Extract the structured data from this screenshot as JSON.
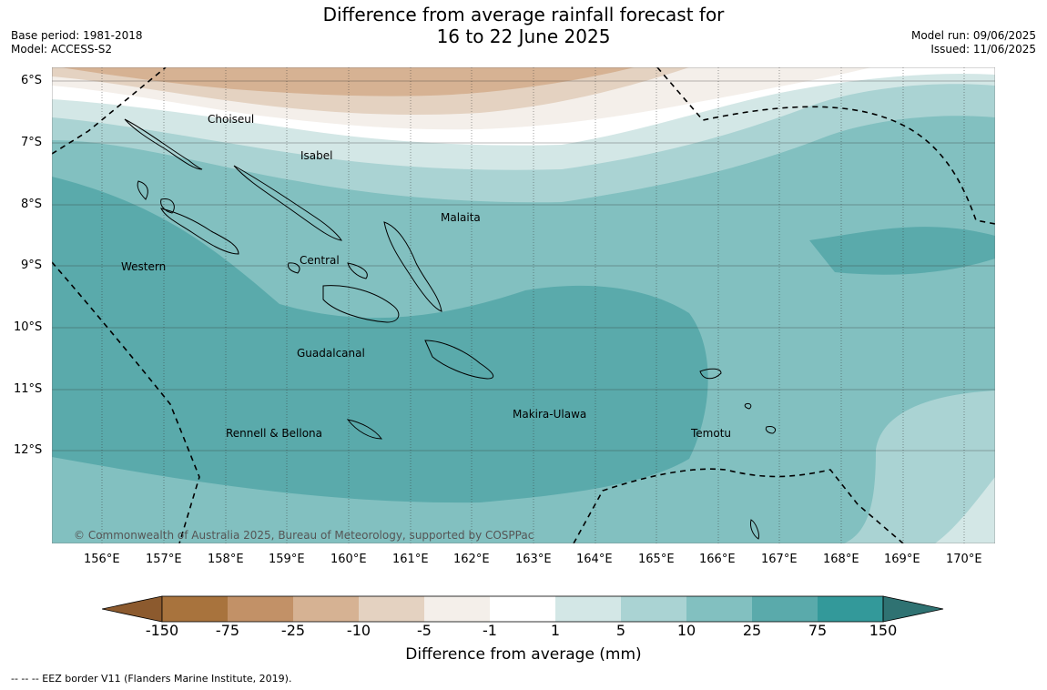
{
  "title": {
    "line1": "Difference from average rainfall forecast for",
    "line2": "16 to 22 June 2025"
  },
  "info_left": {
    "base_period": "Base period: 1981-2018",
    "model": "Model: ACCESS-S2"
  },
  "info_right": {
    "model_run": "Model run: 09/06/2025",
    "issued": "Issued: 11/06/2025"
  },
  "map": {
    "lat_labels": [
      "6°S",
      "7°S",
      "8°S",
      "9°S",
      "10°S",
      "11°S",
      "12°S"
    ],
    "lon_labels": [
      "156°E",
      "157°E",
      "158°E",
      "159°E",
      "160°E",
      "161°E",
      "162°E",
      "163°E",
      "164°E",
      "165°E",
      "166°E",
      "167°E",
      "168°E",
      "169°E",
      "170°E"
    ],
    "regions": [
      "Choiseul",
      "Isabel",
      "Malaita",
      "Western",
      "Central",
      "Guadalcanal",
      "Makira-Ulawa",
      "Rennell & Bellona",
      "Temotu"
    ],
    "copyright": "© Commonwealth of Australia 2025, Bureau of Meteorology, supported by COSPPac"
  },
  "colorbar": {
    "title": "Difference from average (mm)",
    "ticks": [
      "-150",
      "-75",
      "-25",
      "-10",
      "-5",
      "-1",
      "1",
      "5",
      "10",
      "25",
      "75",
      "150"
    ],
    "colors": [
      "#a8733d",
      "#c29167",
      "#d6b293",
      "#e4d2c1",
      "#f4efea",
      "#ffffff",
      "#d3e7e6",
      "#aad3d3",
      "#82c0c0",
      "#5aaaab",
      "#33999a"
    ],
    "extend_low_color": "#8c5a2e",
    "extend_high_color": "#2f7272"
  },
  "footnote": "--  --  -- EEZ border V11 (Flanders Marine Institute, 2019)."
}
